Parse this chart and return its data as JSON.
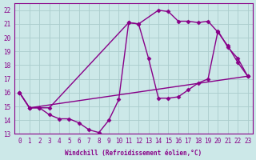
{
  "xlabel": "Windchill (Refroidissement éolien,°C)",
  "xlim": [
    -0.5,
    23.5
  ],
  "ylim": [
    13,
    22.5
  ],
  "yticks": [
    13,
    14,
    15,
    16,
    17,
    18,
    19,
    20,
    21,
    22
  ],
  "xticks": [
    0,
    1,
    2,
    3,
    4,
    5,
    6,
    7,
    8,
    9,
    10,
    11,
    12,
    13,
    14,
    15,
    16,
    17,
    18,
    19,
    20,
    21,
    22,
    23
  ],
  "bg_color": "#cce8e8",
  "line_color": "#880088",
  "grid_color": "#aacccc",
  "series1_x": [
    0,
    1,
    2,
    3,
    4,
    5,
    6,
    7,
    8,
    9,
    10,
    11,
    12,
    13,
    14,
    15,
    16,
    17,
    18,
    19,
    20,
    21,
    22,
    23
  ],
  "series1_y": [
    16.0,
    14.9,
    14.9,
    14.4,
    14.1,
    14.1,
    13.8,
    13.3,
    13.1,
    14.0,
    15.5,
    21.1,
    21.0,
    18.5,
    15.6,
    15.6,
    15.7,
    16.2,
    16.7,
    17.0,
    20.5,
    19.3,
    18.5,
    17.2
  ],
  "series2_x": [
    0,
    1,
    2,
    3,
    11,
    12,
    14,
    15,
    16,
    17,
    18,
    19,
    20,
    21,
    22,
    23
  ],
  "series2_y": [
    16.0,
    14.9,
    14.9,
    14.9,
    21.1,
    21.0,
    22.0,
    21.9,
    21.2,
    21.2,
    21.1,
    21.2,
    20.4,
    19.4,
    18.2,
    17.2
  ],
  "series3_x": [
    0,
    1,
    23
  ],
  "series3_y": [
    16.0,
    14.9,
    17.2
  ],
  "marker": "D",
  "markersize": 2.5,
  "linewidth": 1.0
}
